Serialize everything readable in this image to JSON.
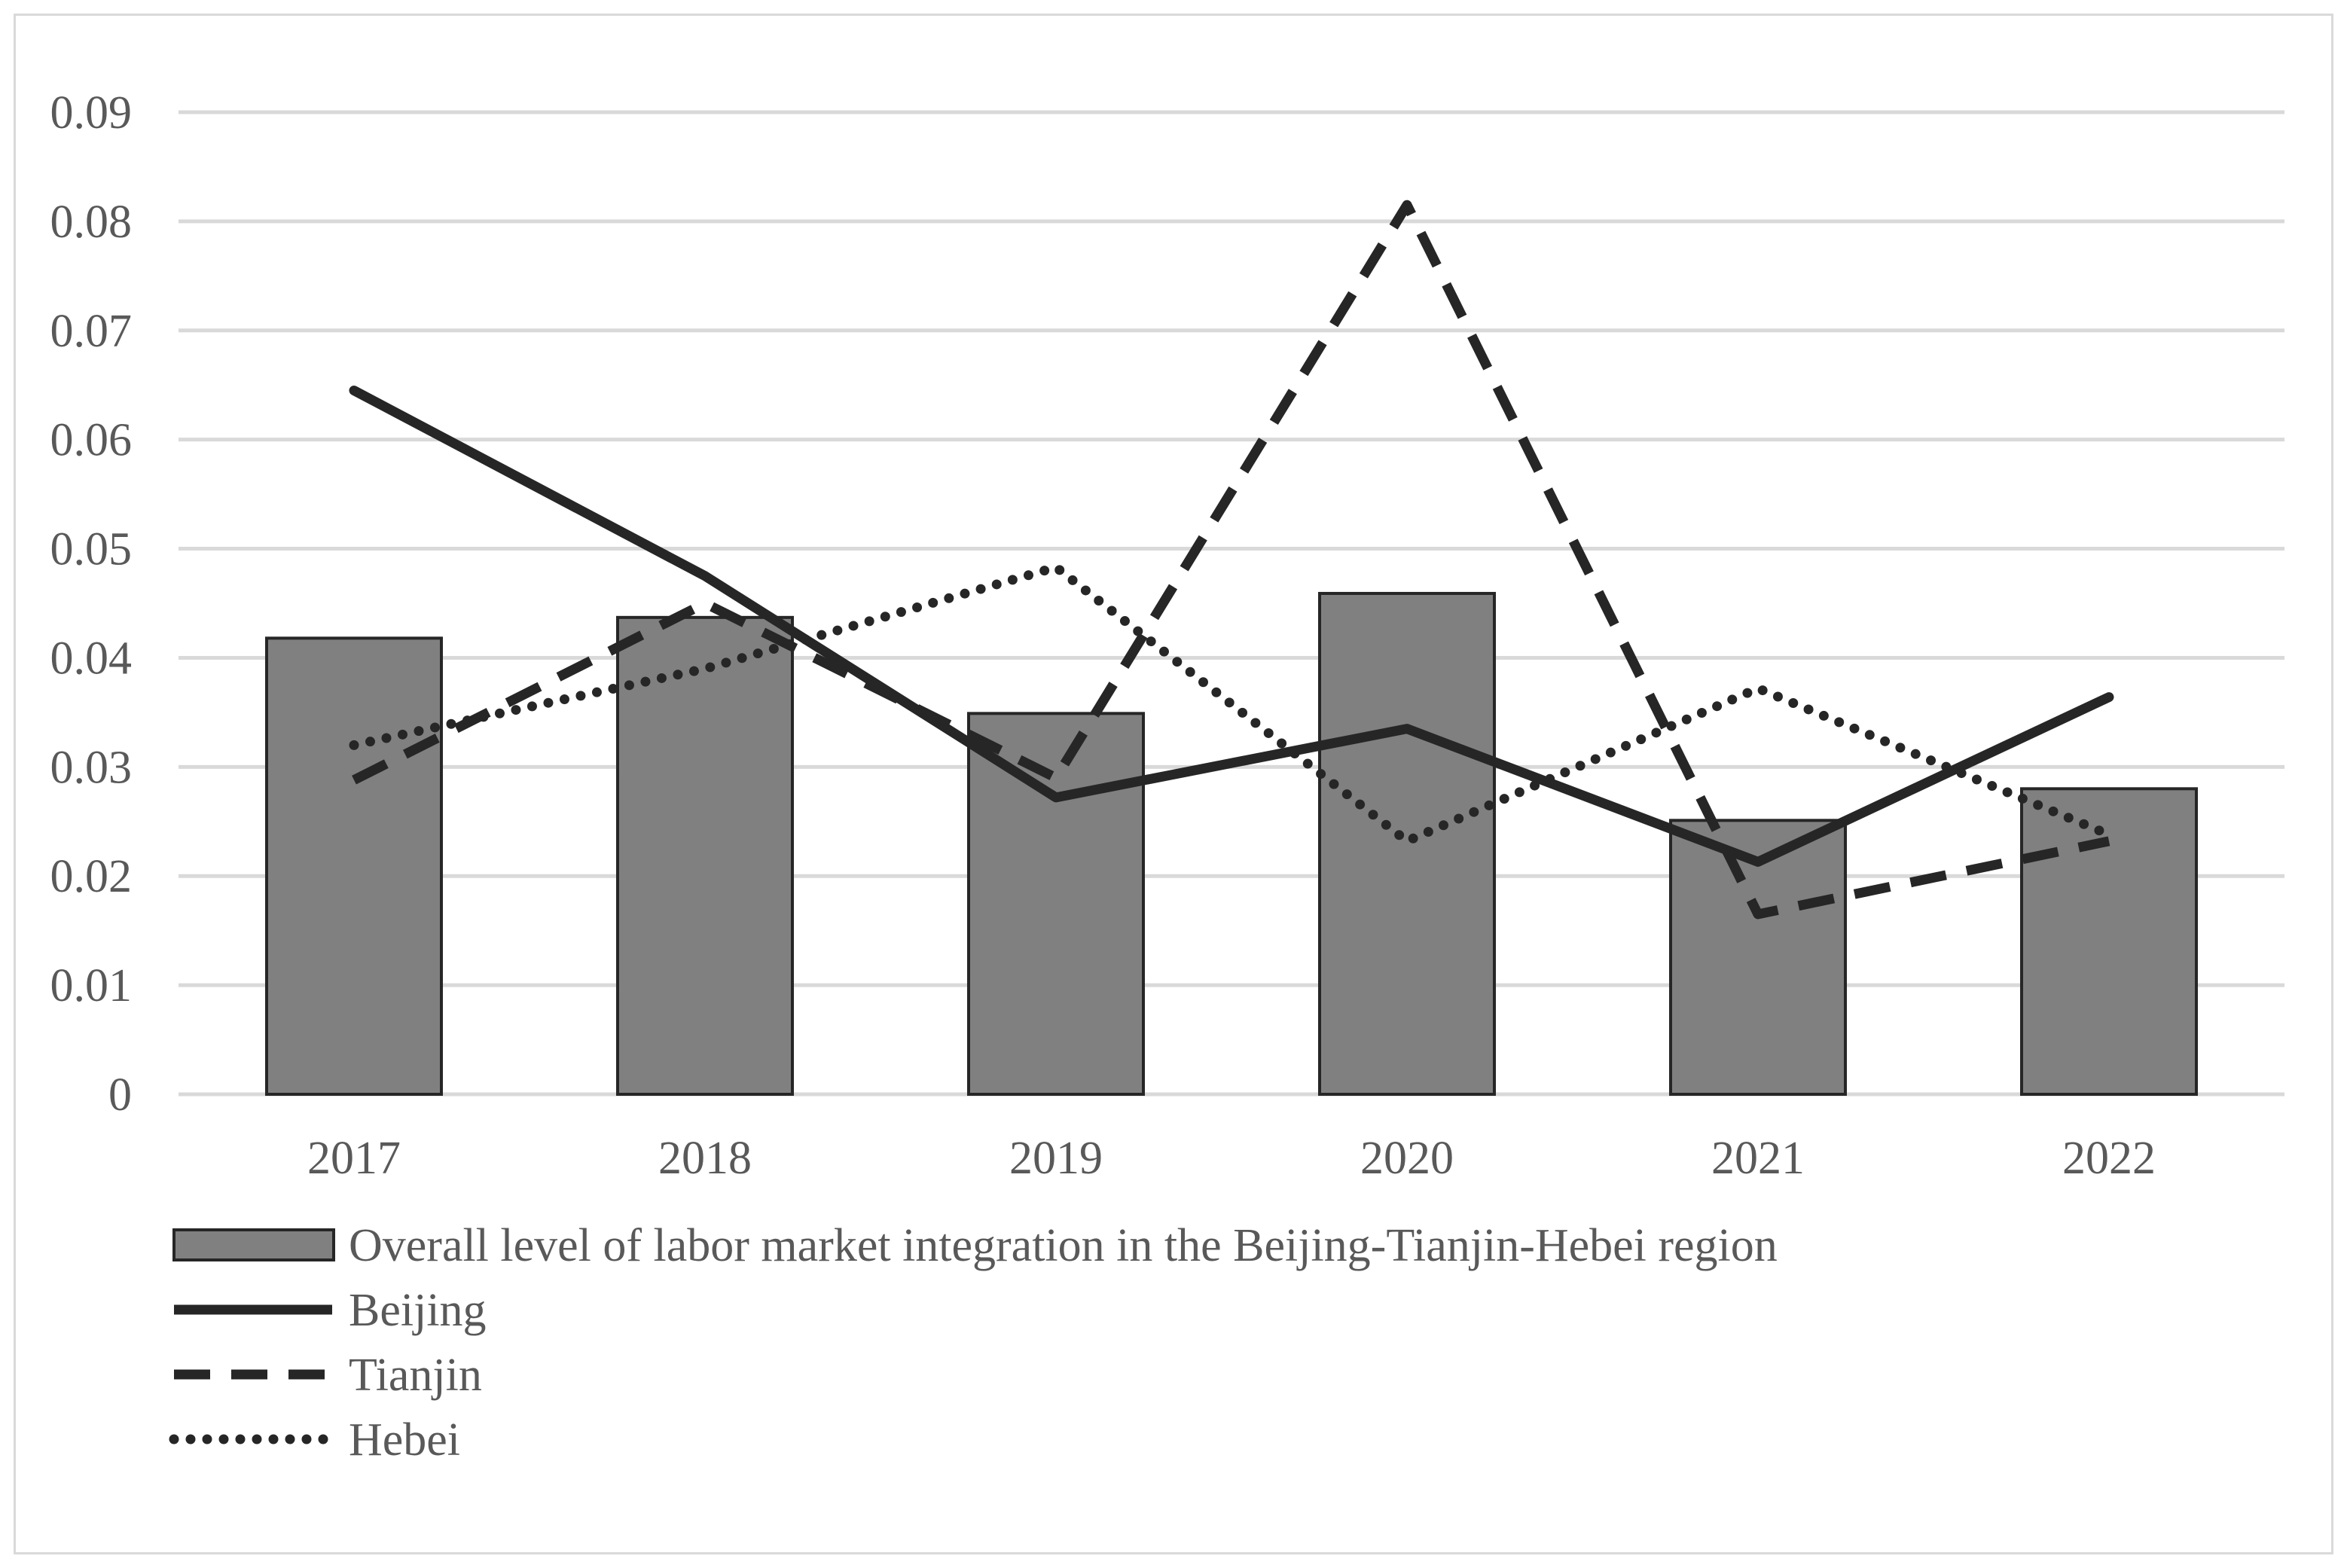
{
  "chart_data": {
    "type": "bar",
    "categories": [
      "2017",
      "2018",
      "2019",
      "2020",
      "2021",
      "2022"
    ],
    "ylim": [
      0,
      0.09
    ],
    "yticks": [
      0,
      0.01,
      0.02,
      0.03,
      0.04,
      0.05,
      0.06,
      0.07,
      0.08,
      0.09
    ],
    "ytick_labels": [
      "0",
      "0.01",
      "0.02",
      "0.03",
      "0.04",
      "0.05",
      "0.06",
      "0.07",
      "0.08",
      "0.09"
    ],
    "grid": true,
    "legend_position": "bottom",
    "series": [
      {
        "name": "Overall level of  labor market integration in the Beijing-Tianjin-Hebei region",
        "type": "bar",
        "color": "#808080",
        "values": [
          0.0418,
          0.0437,
          0.0349,
          0.0459,
          0.0251,
          0.028
        ]
      },
      {
        "name": "Beijing",
        "type": "line",
        "style": "solid",
        "color": "#262626",
        "values": [
          0.0645,
          0.0475,
          0.0272,
          0.0335,
          0.0213,
          0.0364
        ]
      },
      {
        "name": "Tianjin",
        "type": "line",
        "style": "dashed",
        "color": "#262626",
        "values": [
          0.0288,
          0.045,
          0.029,
          0.0815,
          0.0165,
          0.0232
        ]
      },
      {
        "name": "Hebei",
        "type": "line",
        "style": "dotted",
        "color": "#262626",
        "values": [
          0.032,
          0.039,
          0.0483,
          0.0232,
          0.0372,
          0.0238
        ]
      }
    ]
  },
  "colors": {
    "grid": "#d9d9d9",
    "axis_text": "#595959",
    "bar_fill": "#808080",
    "bar_stroke": "#262626",
    "line": "#262626",
    "frame": "#d9d9d9"
  }
}
